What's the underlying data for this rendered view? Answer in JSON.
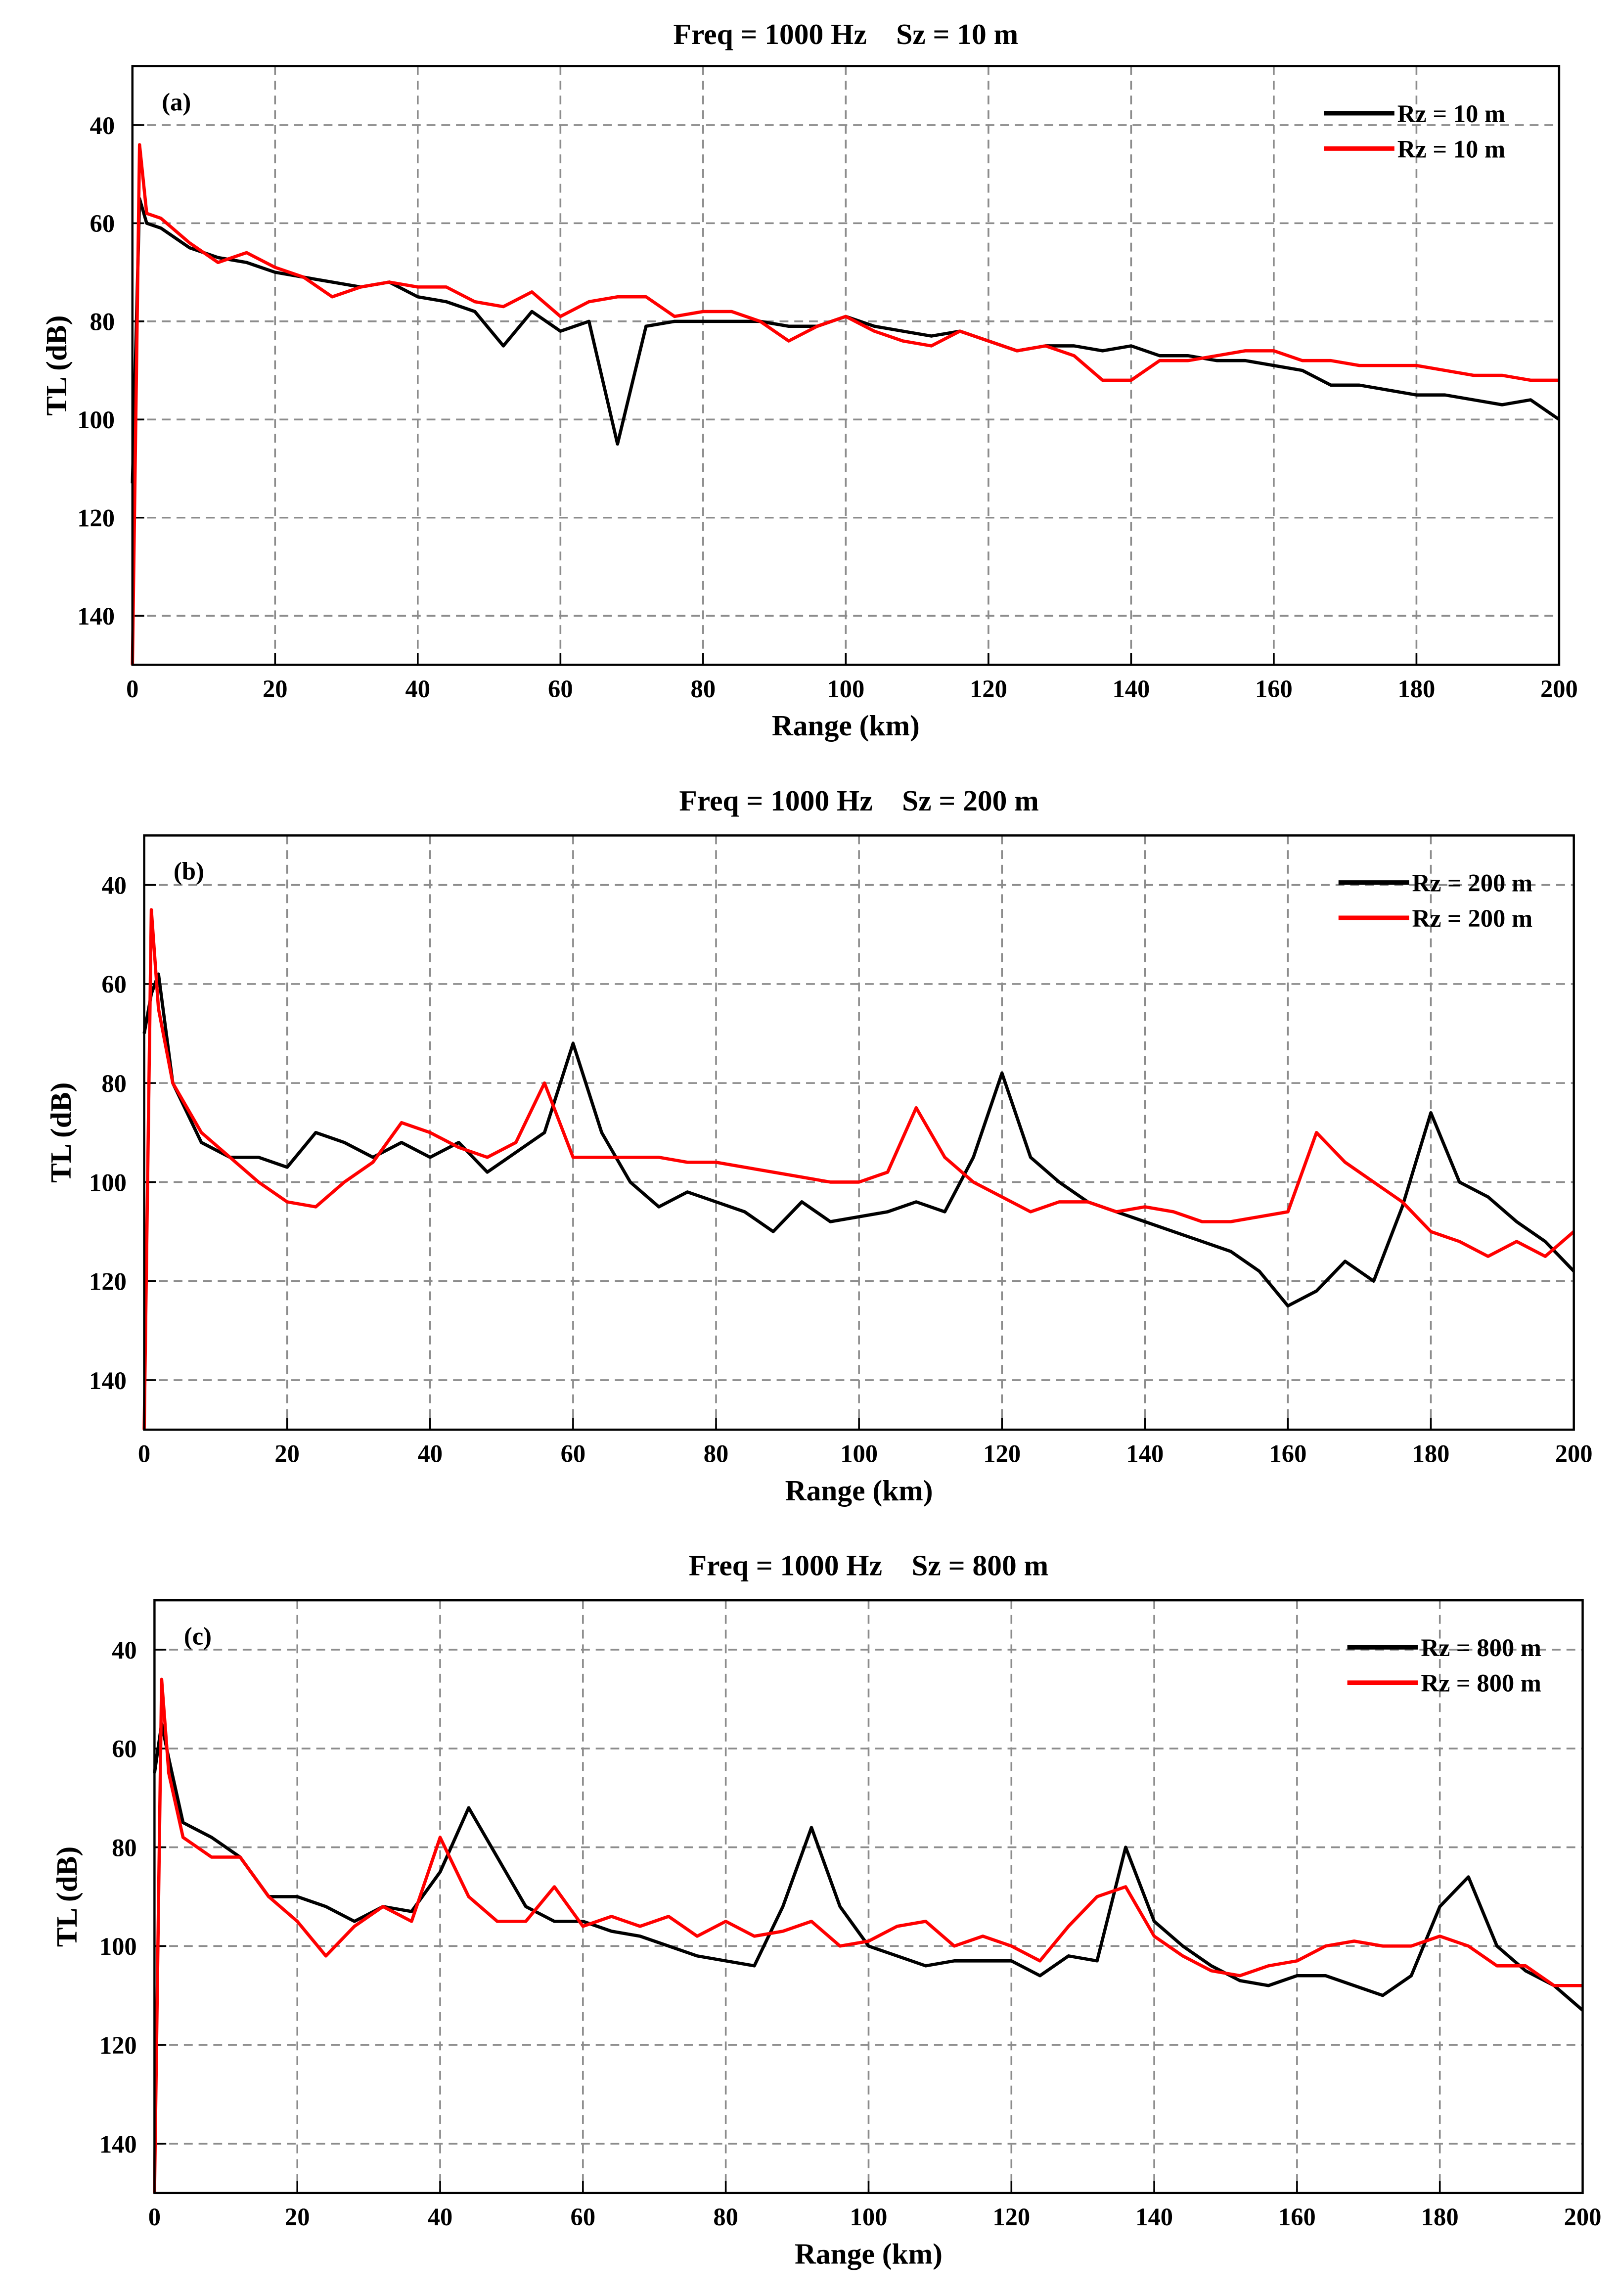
{
  "chart_data": [
    {
      "type": "line",
      "title": "Freq = 1000 Hz    Sz = 10 m",
      "annotation": "(a)",
      "xlabel": "Range (km)",
      "ylabel": "TL (dB)",
      "x": [
        0,
        1,
        2,
        4,
        8,
        12,
        16,
        20,
        24,
        28,
        32,
        36,
        40,
        44,
        48,
        52,
        56,
        60,
        64,
        68,
        72,
        76,
        80,
        84,
        88,
        92,
        96,
        100,
        104,
        108,
        112,
        116,
        120,
        124,
        128,
        132,
        136,
        140,
        144,
        148,
        152,
        156,
        160,
        164,
        168,
        172,
        176,
        180,
        184,
        188,
        192,
        196,
        200
      ],
      "series": [
        {
          "name": "Rz = 10 m",
          "color": "#000000",
          "values": [
            113,
            55,
            60,
            61,
            65,
            67,
            68,
            70,
            71,
            72,
            73,
            72,
            75,
            76,
            78,
            85,
            78,
            82,
            80,
            105,
            81,
            80,
            80,
            80,
            80,
            81,
            81,
            79,
            81,
            82,
            83,
            82,
            84,
            86,
            85,
            85,
            86,
            85,
            87,
            87,
            88,
            88,
            89,
            90,
            93,
            93,
            94,
            95,
            95,
            96,
            97,
            96,
            100
          ]
        },
        {
          "name": "Rz = 10 m",
          "color": "#ff0000",
          "values": [
            150,
            44,
            58,
            59,
            64,
            68,
            66,
            69,
            71,
            75,
            73,
            72,
            73,
            73,
            76,
            77,
            74,
            79,
            76,
            75,
            75,
            79,
            78,
            78,
            80,
            84,
            81,
            79,
            82,
            84,
            85,
            82,
            84,
            86,
            85,
            87,
            92,
            92,
            88,
            88,
            87,
            86,
            86,
            88,
            88,
            89,
            89,
            89,
            90,
            91,
            91,
            92,
            92
          ]
        }
      ],
      "xlim": [
        0,
        200
      ],
      "xticks": [
        0,
        20,
        40,
        60,
        80,
        100,
        120,
        140,
        160,
        180,
        200
      ],
      "ylim": [
        28,
        150
      ],
      "yticks": [
        40,
        60,
        80,
        100,
        120,
        140
      ],
      "y_reversed": true,
      "grid": true,
      "legend": "upper right"
    },
    {
      "type": "line",
      "title": "Freq = 1000 Hz    Sz = 200 m",
      "annotation": "(b)",
      "xlabel": "Range (km)",
      "ylabel": "TL (dB)",
      "x": [
        0,
        1,
        2,
        4,
        8,
        12,
        16,
        20,
        24,
        28,
        32,
        36,
        40,
        44,
        48,
        52,
        56,
        60,
        64,
        68,
        72,
        76,
        80,
        84,
        88,
        92,
        96,
        100,
        104,
        108,
        112,
        116,
        120,
        124,
        128,
        132,
        136,
        140,
        144,
        148,
        152,
        156,
        160,
        164,
        168,
        172,
        176,
        180,
        184,
        188,
        192,
        196,
        200
      ],
      "series": [
        {
          "name": "Rz = 200 m",
          "color": "#000000",
          "values": [
            70,
            62,
            58,
            80,
            92,
            95,
            95,
            97,
            90,
            92,
            95,
            92,
            95,
            92,
            98,
            94,
            90,
            72,
            90,
            100,
            105,
            102,
            104,
            106,
            110,
            104,
            108,
            107,
            106,
            104,
            106,
            95,
            78,
            95,
            100,
            104,
            106,
            108,
            110,
            112,
            114,
            118,
            125,
            122,
            116,
            120,
            105,
            86,
            100,
            103,
            108,
            112,
            118
          ]
        },
        {
          "name": "Rz = 200 m",
          "color": "#ff0000",
          "values": [
            150,
            45,
            65,
            80,
            90,
            95,
            100,
            104,
            105,
            100,
            96,
            88,
            90,
            93,
            95,
            92,
            80,
            95,
            95,
            95,
            95,
            96,
            96,
            97,
            98,
            99,
            100,
            100,
            98,
            85,
            95,
            100,
            103,
            106,
            104,
            104,
            106,
            105,
            106,
            108,
            108,
            107,
            106,
            90,
            96,
            100,
            104,
            110,
            112,
            115,
            112,
            115,
            110
          ]
        }
      ],
      "xlim": [
        0,
        200
      ],
      "xticks": [
        0,
        20,
        40,
        60,
        80,
        100,
        120,
        140,
        160,
        180,
        200
      ],
      "ylim": [
        30,
        150
      ],
      "yticks": [
        40,
        60,
        80,
        100,
        120,
        140
      ],
      "y_reversed": true,
      "grid": true,
      "legend": "upper right"
    },
    {
      "type": "line",
      "title": "Freq = 1000 Hz    Sz = 800 m",
      "annotation": "(c)",
      "xlabel": "Range (km)",
      "ylabel": "TL (dB)",
      "x": [
        0,
        1,
        2,
        4,
        8,
        12,
        16,
        20,
        24,
        28,
        32,
        36,
        40,
        44,
        48,
        52,
        56,
        60,
        64,
        68,
        72,
        76,
        80,
        84,
        88,
        92,
        96,
        100,
        104,
        108,
        112,
        116,
        120,
        124,
        128,
        132,
        136,
        140,
        144,
        148,
        152,
        156,
        160,
        164,
        168,
        172,
        176,
        180,
        184,
        188,
        192,
        196,
        200
      ],
      "series": [
        {
          "name": "Rz = 800 m",
          "color": "#000000",
          "values": [
            65,
            55,
            62,
            75,
            78,
            82,
            90,
            90,
            92,
            95,
            92,
            93,
            85,
            72,
            82,
            92,
            95,
            95,
            97,
            98,
            100,
            102,
            103,
            104,
            92,
            76,
            92,
            100,
            102,
            104,
            103,
            103,
            103,
            106,
            102,
            103,
            80,
            95,
            100,
            104,
            107,
            108,
            106,
            106,
            108,
            110,
            106,
            92,
            86,
            100,
            105,
            108,
            113
          ]
        },
        {
          "name": "Rz = 800 m",
          "color": "#ff0000",
          "values": [
            150,
            46,
            65,
            78,
            82,
            82,
            90,
            95,
            102,
            96,
            92,
            95,
            78,
            90,
            95,
            95,
            88,
            96,
            94,
            96,
            94,
            98,
            95,
            98,
            97,
            95,
            100,
            99,
            96,
            95,
            100,
            98,
            100,
            103,
            96,
            90,
            88,
            98,
            102,
            105,
            106,
            104,
            103,
            100,
            99,
            100,
            100,
            98,
            100,
            104,
            104,
            108,
            108
          ]
        }
      ],
      "xlim": [
        0,
        200
      ],
      "xticks": [
        0,
        20,
        40,
        60,
        80,
        100,
        120,
        140,
        160,
        180,
        200
      ],
      "ylim": [
        30,
        150
      ],
      "yticks": [
        40,
        60,
        80,
        100,
        120,
        140
      ],
      "y_reversed": true,
      "grid": true,
      "legend": "upper right"
    }
  ]
}
